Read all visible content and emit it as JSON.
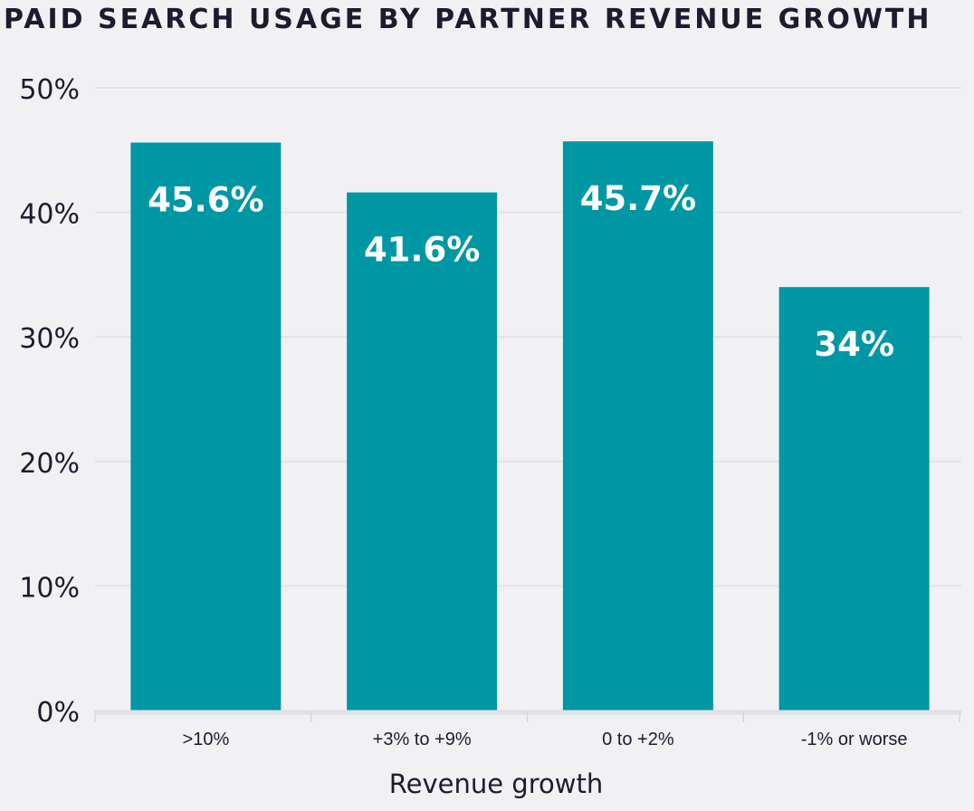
{
  "chart_data": {
    "type": "bar",
    "title": "PAID SEARCH USAGE BY PARTNER REVENUE GROWTH",
    "xlabel": "Revenue growth",
    "ylabel": "",
    "categories": [
      ">10%",
      "+3% to +9%",
      "0 to +2%",
      "-1% or worse"
    ],
    "values": [
      45.6,
      41.6,
      45.7,
      34
    ],
    "data_labels": [
      "45.6%",
      "41.6%",
      "45.7%",
      "34%"
    ],
    "yticks": [
      0,
      10,
      20,
      30,
      40,
      50
    ],
    "ytick_labels": [
      "0%",
      "10%",
      "20%",
      "30%",
      "40%",
      "50%"
    ],
    "ylim": [
      0,
      50
    ],
    "grid": true,
    "colors": {
      "bar": "#0097a5",
      "background": "#f1f1f4",
      "text": "#1c1c2e",
      "grid": "#e2e2e6"
    }
  }
}
